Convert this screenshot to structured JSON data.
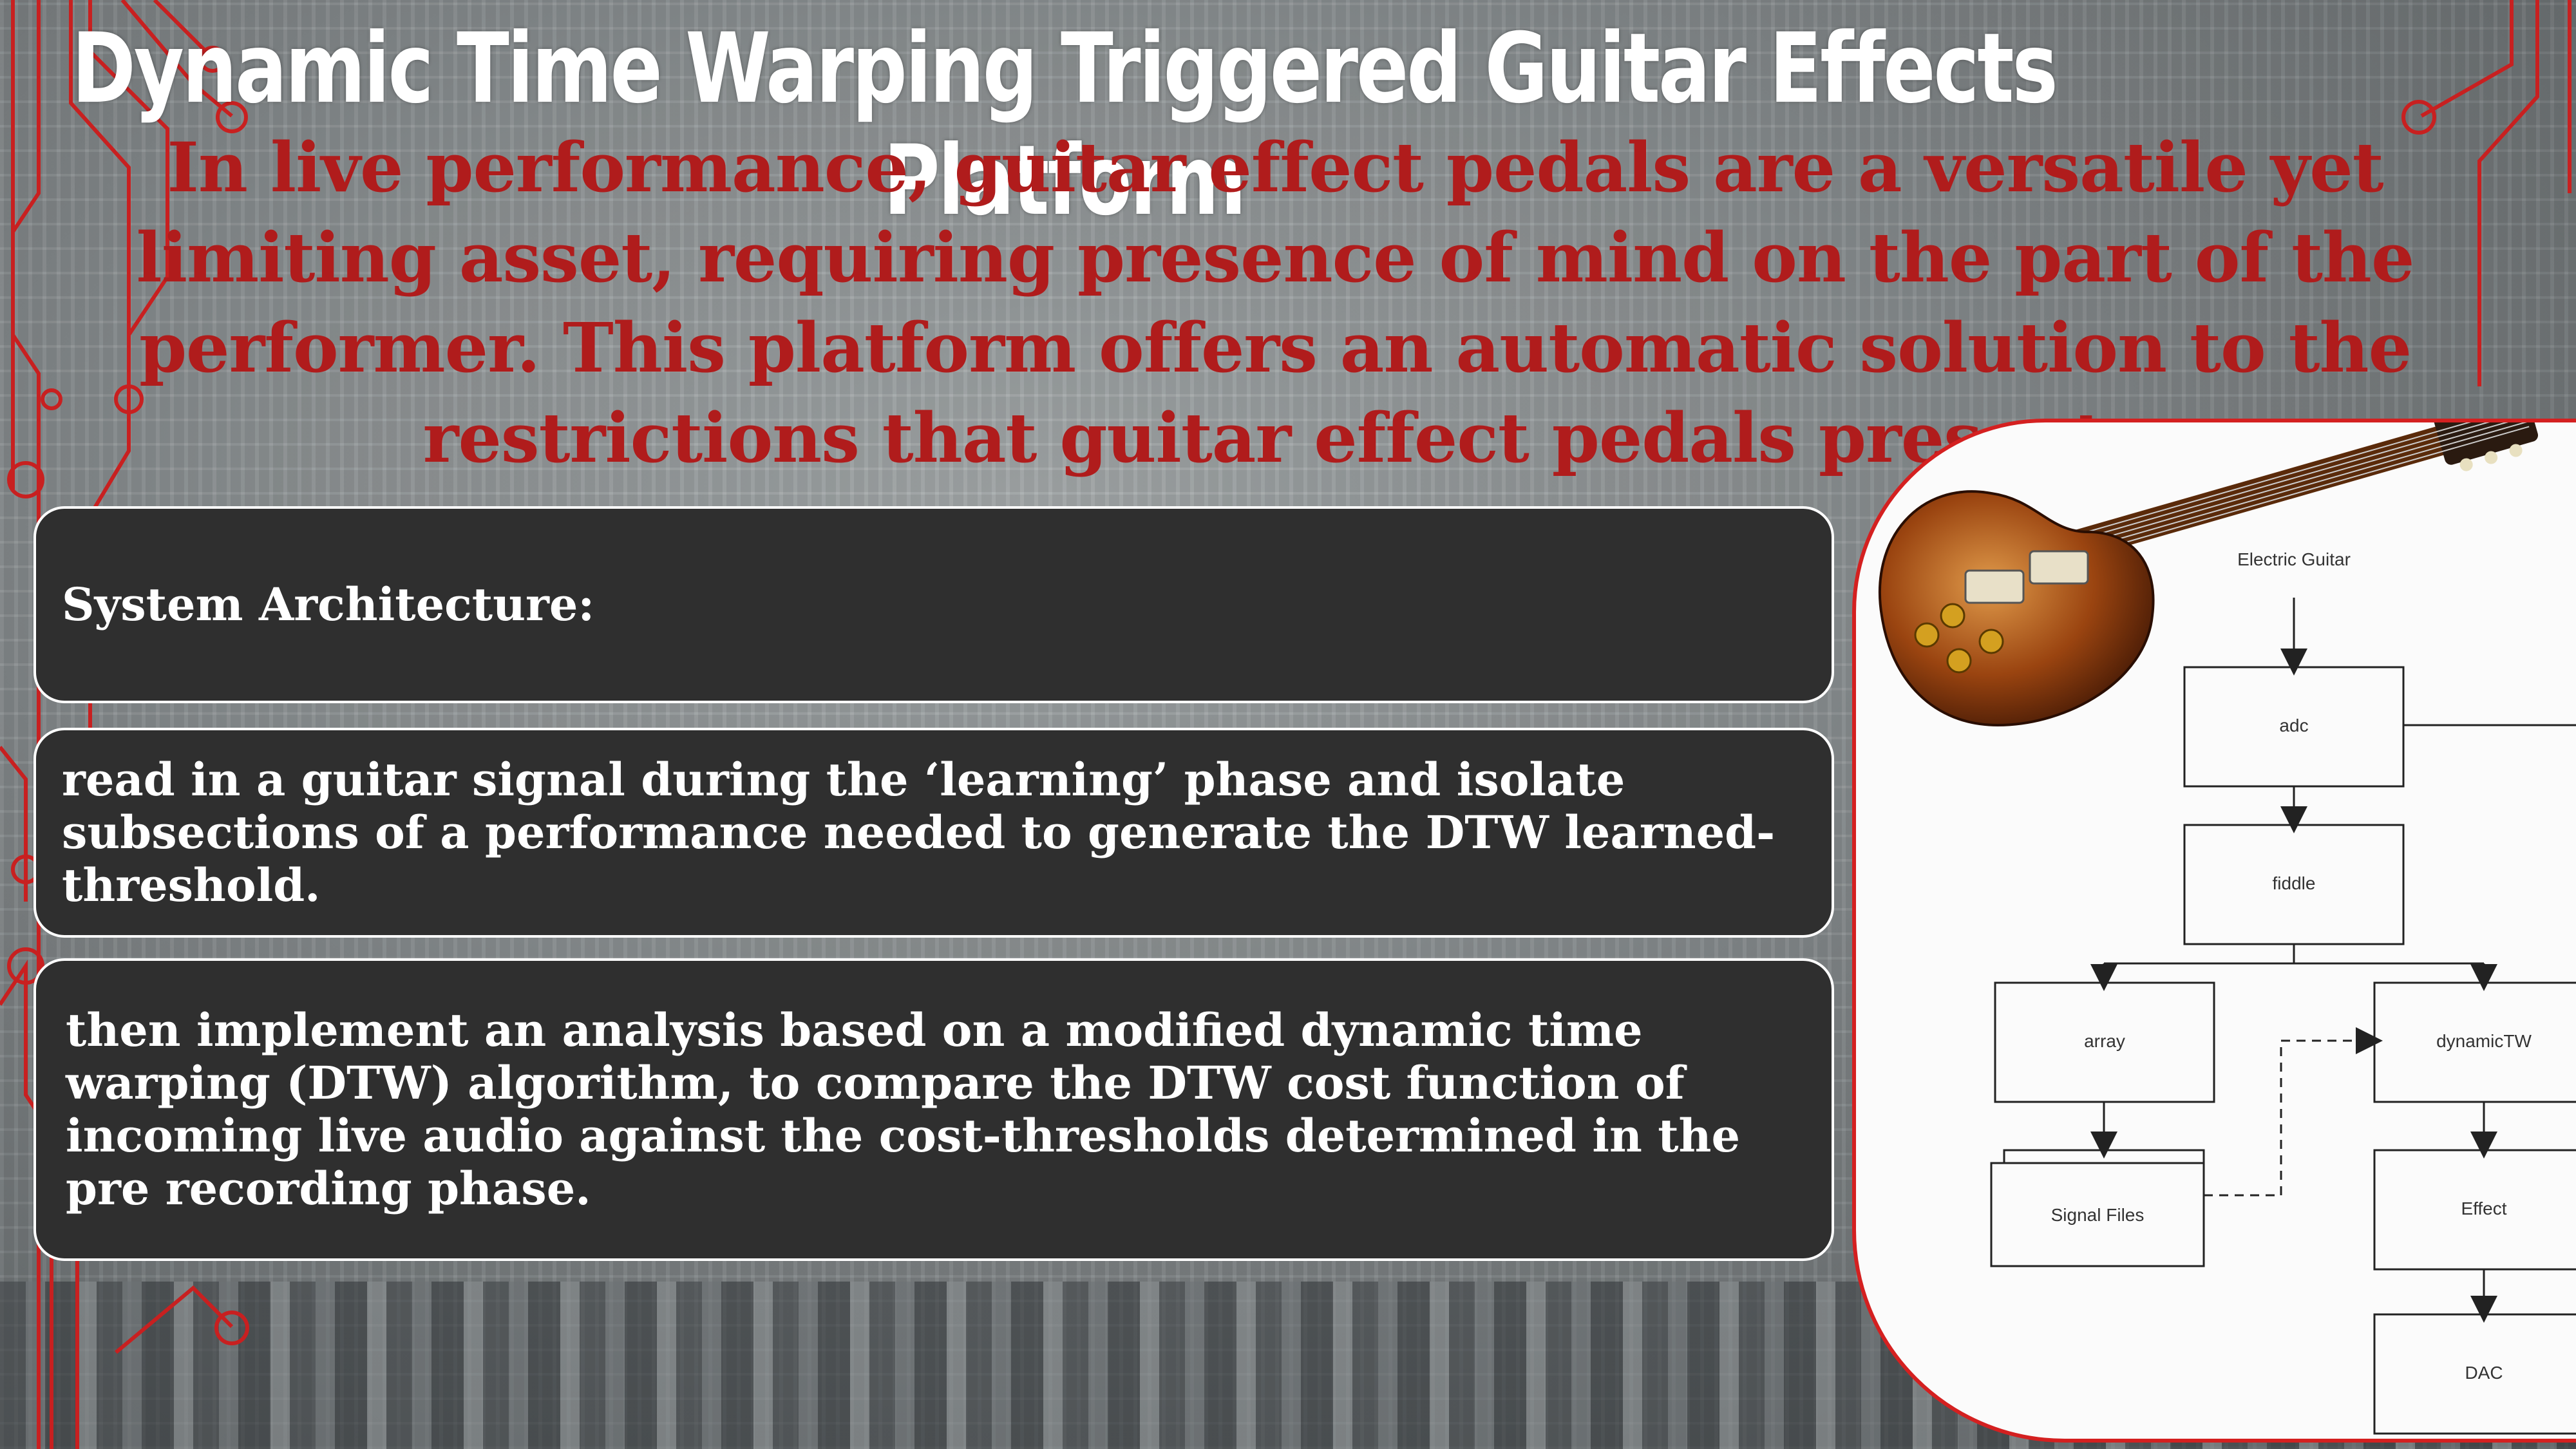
{
  "title": "Dynamic Time Warping Triggered Guitar Effects Platform",
  "intro": "In live performance, guitar effect pedals are a versatile yet limiting asset, requiring presence of mind on the part of the performer. This platform offers an automatic solution to the restrictions that guitar effect pedals present.",
  "cards": [
    "System Architecture:",
    "read in a guitar signal during the ‘learning’ phase and isolate subsections of a performance needed to generate the DTW learned-threshold.",
    "then implement an analysis based on a modified dynamic time warping (DTW) algorithm, to compare the DTW cost function of incoming live audio against the cost-thresholds determined in the pre recording phase."
  ],
  "diagram": {
    "input": "Electric Guitar",
    "adc": "adc",
    "fiddle": "fiddle",
    "array": "array",
    "dynamictw": "dynamicTW",
    "signal_files": "Signal Files",
    "effect": "Effect",
    "dac": "DAC"
  },
  "colors": {
    "accent": "#b01c1c",
    "card_bg": "#2f2f2f",
    "guitar_body": "#8a3b0c"
  }
}
